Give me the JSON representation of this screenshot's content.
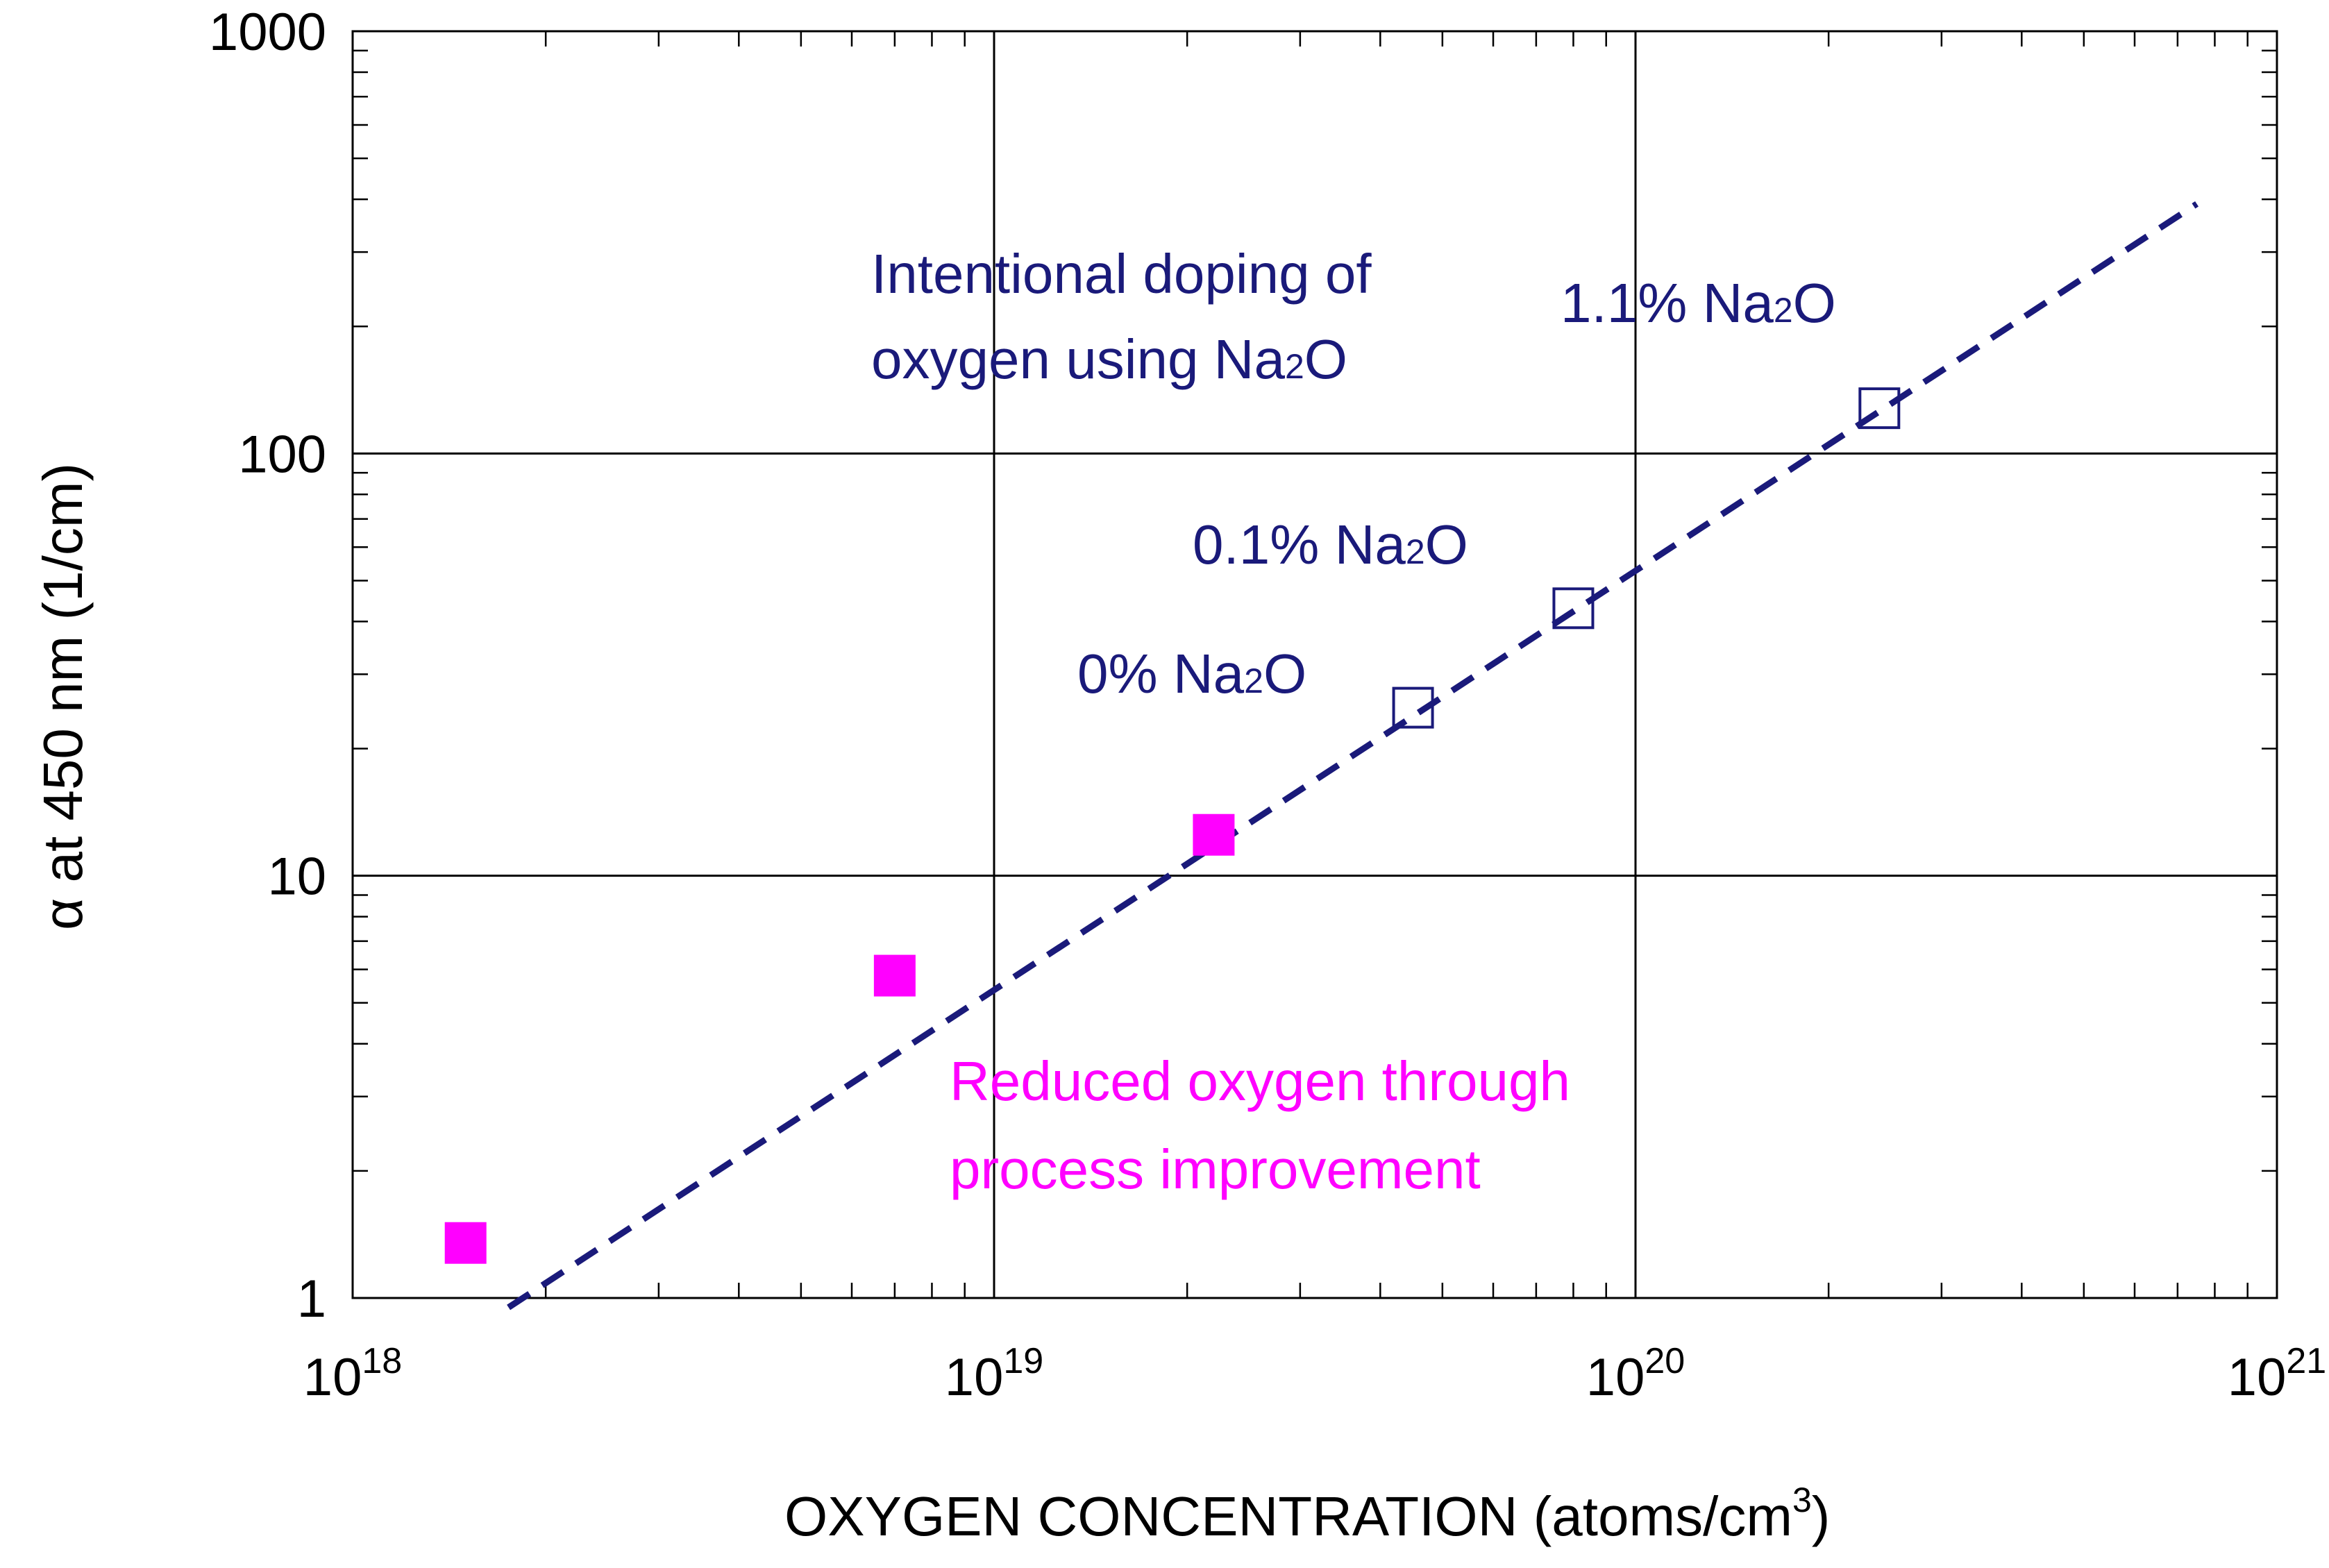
{
  "chart_data": {
    "type": "scatter",
    "xscale": "log",
    "yscale": "log",
    "xlim": [
      1e+18,
      1e+21
    ],
    "ylim": [
      1,
      1000
    ],
    "grid": true,
    "xlabel": "OXYGEN CONCENTRATION (atoms/cm",
    "xlabel_sup": "3",
    "xlabel_end": ")",
    "ylabel": "α at 450 nm (1/cm)",
    "x_ticks": [
      {
        "value": 1e+18,
        "base": "10",
        "exp": "18"
      },
      {
        "value": 1e+19,
        "base": "10",
        "exp": "19"
      },
      {
        "value": 1e+20,
        "base": "10",
        "exp": "20"
      },
      {
        "value": 1e+21,
        "base": "10",
        "exp": "21"
      }
    ],
    "y_ticks": [
      {
        "value": 1,
        "label": "1"
      },
      {
        "value": 10,
        "label": "10"
      },
      {
        "value": 100,
        "label": "100"
      },
      {
        "value": 1000,
        "label": "1000"
      }
    ],
    "series": [
      {
        "name": "Reduced oxygen through process improvement",
        "marker": "filled-square",
        "color": "#ff00ff",
        "points": [
          {
            "x": 1.5e+18,
            "y": 1.35
          },
          {
            "x": 7e+18,
            "y": 5.8
          },
          {
            "x": 2.2e+19,
            "y": 12.5
          }
        ]
      },
      {
        "name": "Intentional doping of oxygen using Na2O",
        "marker": "open-square",
        "color": "#1a1a7a",
        "points": [
          {
            "x": 4.5e+19,
            "y": 25,
            "label": "0% Na2O"
          },
          {
            "x": 8e+19,
            "y": 43,
            "label": "0.1% Na2O"
          },
          {
            "x": 2.4e+20,
            "y": 128,
            "label": "1.1% Na2O"
          }
        ]
      }
    ],
    "fit_line": {
      "style": "dashed",
      "color": "#1a1a7a",
      "points": [
        {
          "x": 1.75e+18,
          "y": 0.95
        },
        {
          "x": 7.5e+20,
          "y": 390
        }
      ]
    },
    "annotations": {
      "doping_line1": "Intentional doping of",
      "doping_line2_pre": "oxygen using Na",
      "doping_line2_sub": "2",
      "doping_line2_post": "O",
      "label_0pct_pre": "0% Na",
      "label_0pct_sub": "2",
      "label_0pct_post": "O",
      "label_01pct_pre": "0.1% Na",
      "label_01pct_sub": "2",
      "label_01pct_post": "O",
      "label_11pct_pre": "1.1% Na",
      "label_11pct_sub": "2",
      "label_11pct_post": "O",
      "reduced_line1": "Reduced oxygen through",
      "reduced_line2": "process improvement"
    }
  }
}
